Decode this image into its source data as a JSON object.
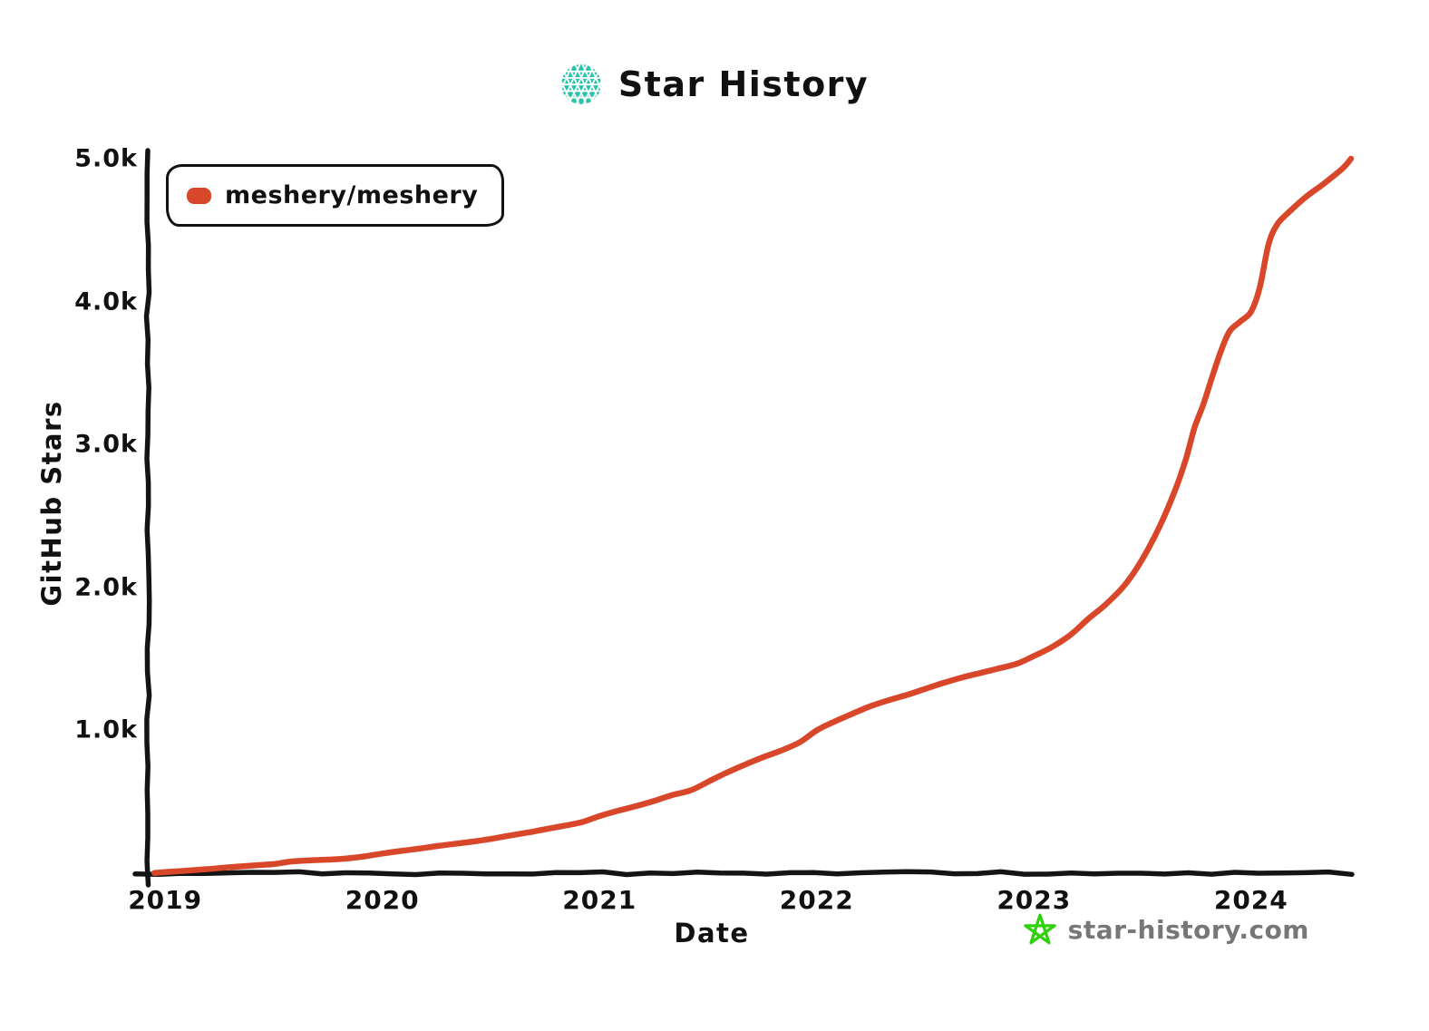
{
  "header": {
    "title": "Star History"
  },
  "legend": {
    "series_label": "meshery/meshery",
    "marker_color": "#d9472b"
  },
  "footer": {
    "site": "star-history.com"
  },
  "icons": {
    "logo": "star-history-mesh-circle-logo",
    "footer_star": "doodle-star-icon"
  },
  "colors": {
    "series_red": "#d9472b",
    "logo_teal": "#2cc4a8",
    "star_green": "#2fd00d",
    "watermark_gray": "#777777",
    "axis_black": "#141414"
  },
  "chart_data": {
    "type": "line",
    "title": "Star History",
    "xlabel": "Date",
    "ylabel": "GitHub Stars",
    "xlim": [
      2018.92,
      2024.46
    ],
    "ylim": [
      0,
      5000
    ],
    "grid": false,
    "legend_position": "top-left-inside",
    "x_ticks": [
      {
        "value": 2019,
        "label": "2019"
      },
      {
        "value": 2020,
        "label": "2020"
      },
      {
        "value": 2021,
        "label": "2021"
      },
      {
        "value": 2022,
        "label": "2022"
      },
      {
        "value": 2023,
        "label": "2023"
      },
      {
        "value": 2024,
        "label": "2024"
      }
    ],
    "y_ticks": [
      {
        "value": 1000,
        "label": "1.0k"
      },
      {
        "value": 2000,
        "label": "2.0k"
      },
      {
        "value": 3000,
        "label": "3.0k"
      },
      {
        "value": 4000,
        "label": "4.0k"
      },
      {
        "value": 5000,
        "label": "5.0k"
      }
    ],
    "series": [
      {
        "name": "meshery/meshery",
        "color": "#d9472b",
        "x_unit": "decimal_year",
        "y_unit": "github_stars",
        "points": [
          [
            2018.95,
            2
          ],
          [
            2019.0,
            8
          ],
          [
            2019.08,
            16
          ],
          [
            2019.17,
            26
          ],
          [
            2019.25,
            36
          ],
          [
            2019.33,
            46
          ],
          [
            2019.42,
            56
          ],
          [
            2019.5,
            64
          ],
          [
            2019.58,
            82
          ],
          [
            2019.67,
            90
          ],
          [
            2019.75,
            95
          ],
          [
            2019.83,
            102
          ],
          [
            2019.92,
            118
          ],
          [
            2020.0,
            138
          ],
          [
            2020.08,
            155
          ],
          [
            2020.17,
            172
          ],
          [
            2020.25,
            190
          ],
          [
            2020.33,
            205
          ],
          [
            2020.42,
            222
          ],
          [
            2020.5,
            240
          ],
          [
            2020.58,
            262
          ],
          [
            2020.67,
            285
          ],
          [
            2020.75,
            308
          ],
          [
            2020.83,
            330
          ],
          [
            2020.92,
            358
          ],
          [
            2021.0,
            400
          ],
          [
            2021.08,
            435
          ],
          [
            2021.17,
            470
          ],
          [
            2021.25,
            505
          ],
          [
            2021.33,
            545
          ],
          [
            2021.42,
            580
          ],
          [
            2021.5,
            640
          ],
          [
            2021.58,
            700
          ],
          [
            2021.67,
            760
          ],
          [
            2021.75,
            810
          ],
          [
            2021.83,
            855
          ],
          [
            2021.92,
            915
          ],
          [
            2022.0,
            1000
          ],
          [
            2022.08,
            1060
          ],
          [
            2022.17,
            1120
          ],
          [
            2022.25,
            1170
          ],
          [
            2022.33,
            1210
          ],
          [
            2022.42,
            1250
          ],
          [
            2022.5,
            1290
          ],
          [
            2022.58,
            1330
          ],
          [
            2022.67,
            1370
          ],
          [
            2022.75,
            1400
          ],
          [
            2022.83,
            1430
          ],
          [
            2022.92,
            1465
          ],
          [
            2023.0,
            1520
          ],
          [
            2023.08,
            1580
          ],
          [
            2023.17,
            1670
          ],
          [
            2023.25,
            1780
          ],
          [
            2023.33,
            1880
          ],
          [
            2023.42,
            2020
          ],
          [
            2023.5,
            2200
          ],
          [
            2023.58,
            2430
          ],
          [
            2023.65,
            2680
          ],
          [
            2023.7,
            2900
          ],
          [
            2023.74,
            3120
          ],
          [
            2023.78,
            3280
          ],
          [
            2023.82,
            3470
          ],
          [
            2023.86,
            3650
          ],
          [
            2023.9,
            3790
          ],
          [
            2023.95,
            3860
          ],
          [
            2024.0,
            3930
          ],
          [
            2024.04,
            4100
          ],
          [
            2024.08,
            4400
          ],
          [
            2024.12,
            4540
          ],
          [
            2024.17,
            4620
          ],
          [
            2024.25,
            4730
          ],
          [
            2024.33,
            4820
          ],
          [
            2024.42,
            4930
          ],
          [
            2024.46,
            5000
          ]
        ]
      }
    ]
  }
}
